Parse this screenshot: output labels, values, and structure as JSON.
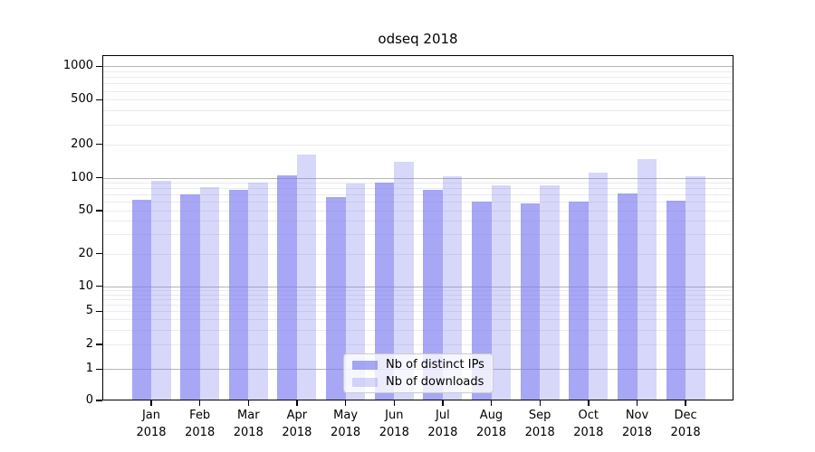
{
  "chart_data": {
    "type": "bar",
    "title": "odseq 2018",
    "categories": [
      "Jan",
      "Feb",
      "Mar",
      "Apr",
      "May",
      "Jun",
      "Jul",
      "Aug",
      "Sep",
      "Oct",
      "Nov",
      "Dec"
    ],
    "year": "2018",
    "series": [
      {
        "name": "Nb of distinct IPs",
        "color": "rgba(121,121,240,0.66)",
        "values": [
          63,
          70,
          77,
          106,
          66,
          91,
          77,
          60,
          58,
          60,
          72,
          61
        ]
      },
      {
        "name": "Nb of downloads",
        "color": "rgba(121,121,240,0.30)",
        "values": [
          94,
          82,
          91,
          162,
          88,
          138,
          104,
          86,
          85,
          112,
          148,
          104
        ]
      }
    ],
    "y_axis": {
      "ticks": [
        0,
        1,
        2,
        5,
        10,
        20,
        50,
        100,
        200,
        500,
        1000
      ],
      "scale": "log-with-zero"
    },
    "grid": "on",
    "legend_position": "lower-center",
    "colors": {
      "major_grid": "#b5b5b5",
      "minor_grid": "#ebebf0",
      "frame": "#000000"
    }
  }
}
